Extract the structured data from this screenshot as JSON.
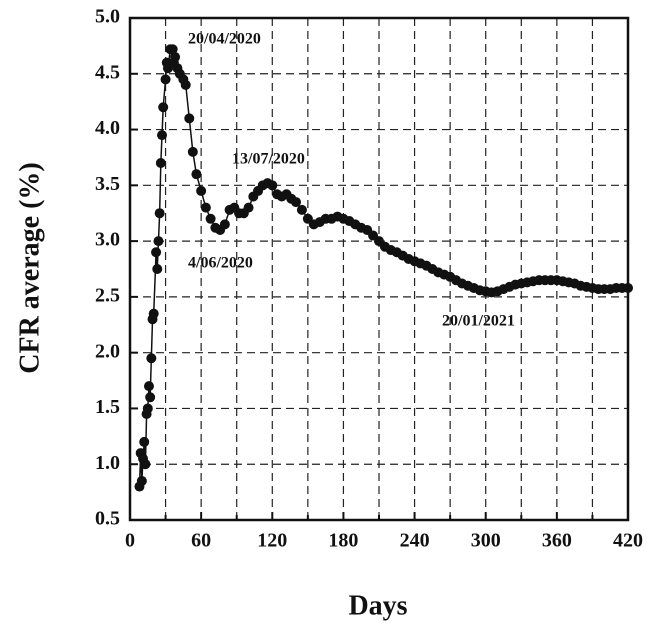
{
  "chart_data": {
    "type": "scatter",
    "xlabel": "Days",
    "ylabel": "CFR average (%)",
    "xlim": [
      0,
      420
    ],
    "ylim": [
      0.5,
      5.0
    ],
    "xticks": [
      0,
      60,
      120,
      180,
      240,
      300,
      360,
      420
    ],
    "x_minor_ticks": [
      30,
      90,
      150,
      210,
      270,
      330,
      390
    ],
    "yticks": [
      {
        "value": 0.5,
        "label": "0.5"
      },
      {
        "value": 1.0,
        "label": "1.0"
      },
      1.5,
      {
        "value": 2.0,
        "label": "2.0"
      },
      2.5,
      {
        "value": 3.0,
        "label": "3.0"
      },
      3.5,
      {
        "value": 4.0,
        "label": "4.0"
      },
      4.5,
      {
        "value": 5.0,
        "label": "5.0"
      }
    ],
    "grid": true,
    "color": "#111111",
    "annotations": [
      "20/04/2020",
      "13/07/2020",
      "4/06/2020",
      "20/01/2021"
    ],
    "x": [
      8,
      9,
      10,
      11,
      12,
      13,
      14,
      15,
      16,
      17,
      18,
      19,
      20,
      22,
      23,
      24,
      25,
      26,
      27,
      28,
      30,
      31,
      32,
      34,
      36,
      37,
      38,
      40,
      42,
      45,
      47,
      50,
      53,
      56,
      60,
      64,
      68,
      72,
      76,
      80,
      84,
      88,
      92,
      96,
      100,
      104,
      108,
      112,
      116,
      120,
      124,
      128,
      132,
      136,
      140,
      145,
      150,
      155,
      160,
      165,
      170,
      175,
      180,
      185,
      190,
      195,
      200,
      205,
      210,
      215,
      220,
      225,
      230,
      235,
      240,
      245,
      250,
      255,
      260,
      265,
      270,
      275,
      280,
      285,
      290,
      295,
      300,
      305,
      310,
      315,
      320,
      325,
      330,
      335,
      340,
      345,
      350,
      355,
      360,
      365,
      370,
      375,
      380,
      385,
      390,
      395,
      400,
      405,
      410,
      415,
      420
    ],
    "values": [
      0.8,
      1.1,
      0.85,
      1.05,
      1.2,
      1.0,
      1.45,
      1.5,
      1.7,
      1.6,
      1.95,
      2.3,
      2.35,
      2.9,
      2.75,
      3.0,
      3.25,
      3.7,
      3.95,
      4.2,
      4.45,
      4.6,
      4.55,
      4.72,
      4.72,
      4.6,
      4.65,
      4.55,
      4.5,
      4.45,
      4.4,
      4.1,
      3.8,
      3.6,
      3.45,
      3.3,
      3.2,
      3.12,
      3.1,
      3.15,
      3.28,
      3.3,
      3.25,
      3.25,
      3.3,
      3.4,
      3.45,
      3.5,
      3.52,
      3.5,
      3.42,
      3.4,
      3.42,
      3.38,
      3.35,
      3.28,
      3.2,
      3.15,
      3.17,
      3.2,
      3.2,
      3.22,
      3.2,
      3.18,
      3.15,
      3.12,
      3.1,
      3.05,
      3.0,
      2.95,
      2.92,
      2.9,
      2.87,
      2.84,
      2.82,
      2.8,
      2.78,
      2.75,
      2.72,
      2.7,
      2.68,
      2.65,
      2.62,
      2.6,
      2.58,
      2.56,
      2.55,
      2.54,
      2.55,
      2.57,
      2.59,
      2.61,
      2.62,
      2.63,
      2.64,
      2.65,
      2.65,
      2.65,
      2.65,
      2.64,
      2.63,
      2.62,
      2.6,
      2.59,
      2.58,
      2.57,
      2.57,
      2.57,
      2.58,
      2.58,
      2.58
    ]
  }
}
